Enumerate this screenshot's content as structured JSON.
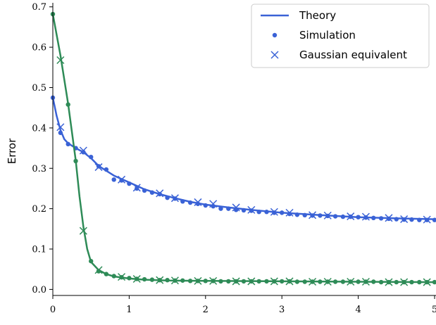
{
  "chart_data": {
    "type": "line",
    "title": "",
    "xlabel": "",
    "ylabel": "Error",
    "xlim": [
      0,
      5
    ],
    "ylim": [
      -0.015,
      0.71
    ],
    "x_ticks": [
      0,
      1,
      2,
      3,
      4,
      5
    ],
    "y_ticks": [
      0.0,
      0.1,
      0.2,
      0.3,
      0.4,
      0.5,
      0.6,
      0.7
    ],
    "x_tick_labels": [
      "0",
      "1",
      "2",
      "3",
      "4",
      "5"
    ],
    "y_tick_labels": [
      "0.0",
      "0.1",
      "0.2",
      "0.3",
      "0.4",
      "0.5",
      "0.6",
      "0.7"
    ],
    "grid": false,
    "legend_position": "top-right",
    "legend": [
      {
        "label": "Theory",
        "marker": "line"
      },
      {
        "label": "Simulation",
        "marker": "dot"
      },
      {
        "label": "Gaussian equivalent",
        "marker": "cross"
      }
    ],
    "colors": {
      "blue": "#3a62d6",
      "green": "#2e8b57"
    },
    "series": [
      {
        "color": "blue",
        "theory": [
          [
            0,
            0.475
          ],
          [
            0.05,
            0.43
          ],
          [
            0.1,
            0.395
          ],
          [
            0.15,
            0.372
          ],
          [
            0.2,
            0.362
          ],
          [
            0.3,
            0.35
          ],
          [
            0.4,
            0.34
          ],
          [
            0.5,
            0.325
          ],
          [
            0.6,
            0.306
          ],
          [
            0.8,
            0.282
          ],
          [
            1.0,
            0.265
          ],
          [
            1.2,
            0.248
          ],
          [
            1.4,
            0.236
          ],
          [
            1.6,
            0.226
          ],
          [
            1.8,
            0.217
          ],
          [
            2.0,
            0.21
          ],
          [
            2.3,
            0.203
          ],
          [
            2.6,
            0.197
          ],
          [
            3.0,
            0.19
          ],
          [
            3.5,
            0.184
          ],
          [
            4.0,
            0.179
          ],
          [
            4.5,
            0.176
          ],
          [
            5.0,
            0.174
          ]
        ],
        "simulation": [
          [
            0.0,
            0.475
          ],
          [
            0.1,
            0.388
          ],
          [
            0.2,
            0.36
          ],
          [
            0.3,
            0.35
          ],
          [
            0.4,
            0.34
          ],
          [
            0.5,
            0.328
          ],
          [
            0.6,
            0.305
          ],
          [
            0.7,
            0.297
          ],
          [
            0.8,
            0.272
          ],
          [
            0.9,
            0.27
          ],
          [
            1.0,
            0.262
          ],
          [
            1.1,
            0.25
          ],
          [
            1.2,
            0.245
          ],
          [
            1.3,
            0.24
          ],
          [
            1.4,
            0.236
          ],
          [
            1.5,
            0.227
          ],
          [
            1.6,
            0.225
          ],
          [
            1.7,
            0.218
          ],
          [
            1.8,
            0.215
          ],
          [
            1.9,
            0.212
          ],
          [
            2.0,
            0.208
          ],
          [
            2.1,
            0.206
          ],
          [
            2.2,
            0.2
          ],
          [
            2.3,
            0.2
          ],
          [
            2.4,
            0.197
          ],
          [
            2.5,
            0.196
          ],
          [
            2.6,
            0.195
          ],
          [
            2.7,
            0.192
          ],
          [
            2.8,
            0.192
          ],
          [
            2.9,
            0.19
          ],
          [
            3.0,
            0.19
          ],
          [
            3.1,
            0.187
          ],
          [
            3.2,
            0.185
          ],
          [
            3.3,
            0.184
          ],
          [
            3.4,
            0.183
          ],
          [
            3.5,
            0.183
          ],
          [
            3.6,
            0.182
          ],
          [
            3.7,
            0.181
          ],
          [
            3.8,
            0.18
          ],
          [
            3.9,
            0.18
          ],
          [
            4.0,
            0.179
          ],
          [
            4.1,
            0.178
          ],
          [
            4.2,
            0.177
          ],
          [
            4.3,
            0.176
          ],
          [
            4.4,
            0.175
          ],
          [
            4.5,
            0.174
          ],
          [
            4.6,
            0.173
          ],
          [
            4.7,
            0.173
          ],
          [
            4.8,
            0.172
          ],
          [
            4.9,
            0.172
          ],
          [
            5.0,
            0.172
          ]
        ],
        "gaussian_equivalent": [
          [
            0.1,
            0.402
          ],
          [
            0.4,
            0.344
          ],
          [
            0.6,
            0.303
          ],
          [
            0.9,
            0.272
          ],
          [
            1.1,
            0.252
          ],
          [
            1.4,
            0.238
          ],
          [
            1.6,
            0.226
          ],
          [
            1.9,
            0.216
          ],
          [
            2.1,
            0.212
          ],
          [
            2.4,
            0.203
          ],
          [
            2.6,
            0.197
          ],
          [
            2.9,
            0.192
          ],
          [
            3.1,
            0.19
          ],
          [
            3.4,
            0.184
          ],
          [
            3.6,
            0.183
          ],
          [
            3.9,
            0.181
          ],
          [
            4.1,
            0.18
          ],
          [
            4.4,
            0.177
          ],
          [
            4.6,
            0.174
          ],
          [
            4.9,
            0.173
          ]
        ]
      },
      {
        "color": "green",
        "theory": [
          [
            0,
            0.682
          ],
          [
            0.1,
            0.58
          ],
          [
            0.2,
            0.46
          ],
          [
            0.3,
            0.32
          ],
          [
            0.35,
            0.23
          ],
          [
            0.4,
            0.155
          ],
          [
            0.45,
            0.1
          ],
          [
            0.5,
            0.068
          ],
          [
            0.6,
            0.048
          ],
          [
            0.7,
            0.038
          ],
          [
            0.8,
            0.032
          ],
          [
            1.0,
            0.027
          ],
          [
            1.2,
            0.024
          ],
          [
            1.5,
            0.022
          ],
          [
            2.0,
            0.021
          ],
          [
            3.0,
            0.02
          ],
          [
            4.0,
            0.019
          ],
          [
            5.0,
            0.018
          ]
        ],
        "simulation": [
          [
            0.0,
            0.682
          ],
          [
            0.2,
            0.458
          ],
          [
            0.3,
            0.318
          ],
          [
            0.5,
            0.07
          ],
          [
            0.6,
            0.045
          ],
          [
            0.7,
            0.038
          ],
          [
            0.8,
            0.033
          ],
          [
            0.9,
            0.03
          ],
          [
            1.0,
            0.028
          ],
          [
            1.1,
            0.026
          ],
          [
            1.2,
            0.025
          ],
          [
            1.3,
            0.024
          ],
          [
            1.4,
            0.023
          ],
          [
            1.5,
            0.023
          ],
          [
            1.6,
            0.022
          ],
          [
            1.7,
            0.022
          ],
          [
            1.8,
            0.021
          ],
          [
            1.9,
            0.021
          ],
          [
            2.0,
            0.021
          ],
          [
            2.1,
            0.021
          ],
          [
            2.2,
            0.02
          ],
          [
            2.3,
            0.02
          ],
          [
            2.4,
            0.02
          ],
          [
            2.5,
            0.02
          ],
          [
            2.6,
            0.02
          ],
          [
            2.7,
            0.02
          ],
          [
            2.8,
            0.02
          ],
          [
            2.9,
            0.02
          ],
          [
            3.0,
            0.02
          ],
          [
            3.1,
            0.02
          ],
          [
            3.2,
            0.019
          ],
          [
            3.3,
            0.019
          ],
          [
            3.4,
            0.019
          ],
          [
            3.5,
            0.019
          ],
          [
            3.6,
            0.019
          ],
          [
            3.7,
            0.019
          ],
          [
            3.8,
            0.019
          ],
          [
            3.9,
            0.019
          ],
          [
            4.0,
            0.019
          ],
          [
            4.1,
            0.019
          ],
          [
            4.2,
            0.019
          ],
          [
            4.3,
            0.018
          ],
          [
            4.4,
            0.018
          ],
          [
            4.5,
            0.018
          ],
          [
            4.6,
            0.018
          ],
          [
            4.7,
            0.018
          ],
          [
            4.8,
            0.018
          ],
          [
            4.9,
            0.018
          ],
          [
            5.0,
            0.018
          ]
        ],
        "gaussian_equivalent": [
          [
            0.1,
            0.568
          ],
          [
            0.4,
            0.145
          ],
          [
            0.6,
            0.048
          ],
          [
            0.9,
            0.031
          ],
          [
            1.1,
            0.026
          ],
          [
            1.4,
            0.023
          ],
          [
            1.6,
            0.022
          ],
          [
            1.9,
            0.021
          ],
          [
            2.1,
            0.021
          ],
          [
            2.4,
            0.02
          ],
          [
            2.6,
            0.02
          ],
          [
            2.9,
            0.02
          ],
          [
            3.1,
            0.02
          ],
          [
            3.4,
            0.019
          ],
          [
            3.6,
            0.019
          ],
          [
            3.9,
            0.019
          ],
          [
            4.1,
            0.019
          ],
          [
            4.4,
            0.018
          ],
          [
            4.6,
            0.018
          ],
          [
            4.9,
            0.018
          ]
        ]
      }
    ]
  }
}
